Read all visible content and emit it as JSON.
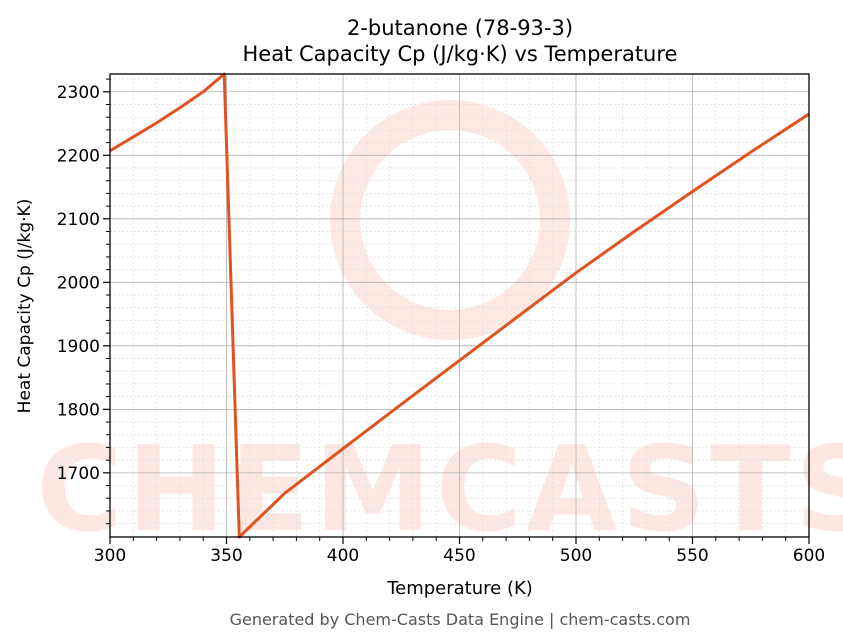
{
  "chart_data": {
    "type": "line",
    "title": "2-butanone (78-93-3)",
    "subtitle": "Heat Capacity Cp (J/kg·K) vs Temperature",
    "xlabel": "Temperature (K)",
    "ylabel": "Heat Capacity Cp (J/kg·K)",
    "xlim": [
      300,
      600
    ],
    "ylim": [
      1599,
      2328
    ],
    "xticks": [
      300,
      350,
      400,
      450,
      500,
      550,
      600
    ],
    "yticks": [
      1700,
      1800,
      1900,
      2000,
      2100,
      2200,
      2300
    ],
    "grid": true,
    "series": [
      {
        "name": "Cp",
        "color": "#e0521f",
        "x": [
          300,
          310,
          320,
          330,
          340,
          349,
          355.5,
          375,
          400,
          425,
          450,
          475,
          500,
          525,
          550,
          575,
          600
        ],
        "y": [
          2207,
          2229,
          2251,
          2275,
          2300,
          2328,
          1599,
          1668,
          1738,
          1808,
          1877,
          1946,
          2015,
          2080,
          2143,
          2205,
          2265
        ]
      }
    ],
    "watermark": "CHEMCASTS"
  },
  "footer": "Generated by Chem-Casts Data Engine | chem-casts.com"
}
